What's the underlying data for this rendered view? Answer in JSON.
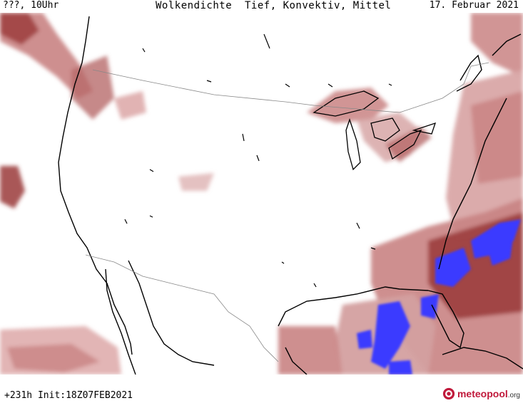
{
  "header": {
    "left_label": "???, 10Uhr",
    "title": "Wolkendichte  Tief, Konvektiv, Mittel",
    "date": "17. Februar 2021"
  },
  "footer": {
    "run_info": "+231h Init:18Z07FEB2021",
    "brand_main": "meteopool",
    "brand_tld": ".org"
  },
  "map": {
    "region": "North America (USA, northern Mexico)",
    "layers": [
      "coastlines",
      "lakes",
      "national borders",
      "cloud density shading"
    ],
    "colors": {
      "background": "#ffffff",
      "cloud_light": "#e8c4c4",
      "cloud_medium": "#c98383",
      "cloud_dark": "#9a3a3a",
      "convective": "#3b3bff",
      "coastline": "#000000",
      "border": "#888888"
    }
  }
}
